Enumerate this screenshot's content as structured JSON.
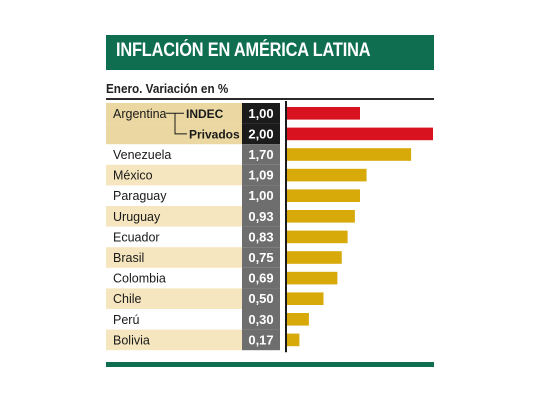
{
  "title": "INFLACIÓN EN AMÉRICA LATINA",
  "subtitle": "Enero. Variación en %",
  "colors": {
    "header": "#0f6e4f",
    "band": "#f5e6bf",
    "argentina_band": "#ead7a2",
    "value_box": "#6e6e6e",
    "value_box_dark": "#1b1b1b",
    "bar_red": "#d8121f",
    "bar_gold": "#d7a909"
  },
  "chart_data": {
    "type": "bar",
    "orientation": "horizontal",
    "xlim": [
      0,
      2.0
    ],
    "rows": [
      {
        "label": "Argentina",
        "sub": "INDEC",
        "value": 1.0,
        "display": "1,00",
        "color": "red"
      },
      {
        "label": "",
        "sub": "Privados",
        "value": 2.0,
        "display": "2,00",
        "color": "red"
      },
      {
        "label": "Venezuela",
        "value": 1.7,
        "display": "1,70",
        "color": "gold"
      },
      {
        "label": "México",
        "value": 1.09,
        "display": "1,09",
        "color": "gold"
      },
      {
        "label": "Paraguay",
        "value": 1.0,
        "display": "1,00",
        "color": "gold"
      },
      {
        "label": "Uruguay",
        "value": 0.93,
        "display": "0,93",
        "color": "gold"
      },
      {
        "label": "Ecuador",
        "value": 0.83,
        "display": "0,83",
        "color": "gold"
      },
      {
        "label": "Brasil",
        "value": 0.75,
        "display": "0,75",
        "color": "gold"
      },
      {
        "label": "Colombia",
        "value": 0.69,
        "display": "0,69",
        "color": "gold"
      },
      {
        "label": "Chile",
        "value": 0.5,
        "display": "0,50",
        "color": "gold"
      },
      {
        "label": "Perú",
        "value": 0.3,
        "display": "0,30",
        "color": "gold"
      },
      {
        "label": "Bolivia",
        "value": 0.17,
        "display": "0,17",
        "color": "gold"
      }
    ]
  }
}
